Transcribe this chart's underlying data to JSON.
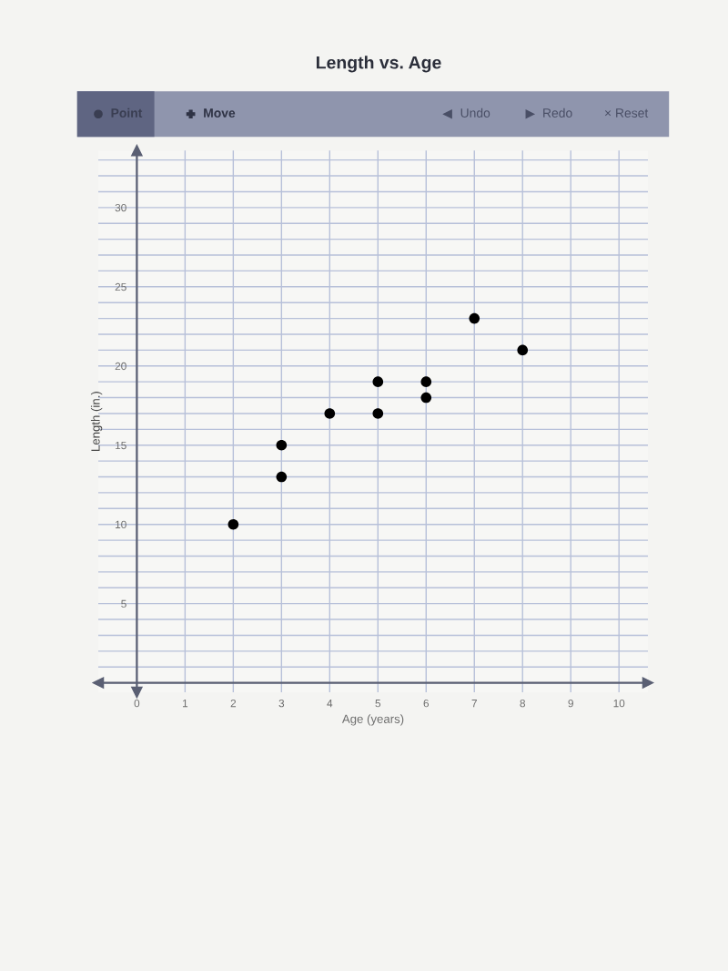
{
  "chart_data": {
    "type": "scatter",
    "title": "Length vs. Age",
    "xlabel": "Age (years)",
    "ylabel": "Length (in.)",
    "x": [
      2,
      3,
      3,
      4,
      5,
      5,
      6,
      6,
      7,
      8
    ],
    "series": [
      {
        "color": "#000000",
        "values": [
          10,
          15,
          13,
          17,
          19,
          17,
          19,
          18,
          23,
          21
        ]
      }
    ],
    "marker": "circle",
    "xlim": [
      -0.8,
      10.6
    ],
    "xticks": [
      0,
      1,
      2,
      3,
      4,
      5,
      6,
      7,
      8,
      9,
      10
    ],
    "ylim": [
      -0.6,
      33.6
    ],
    "yticks": [
      {
        "value": 0,
        "label": null
      },
      {
        "value": 1,
        "label": null
      },
      {
        "value": 2,
        "label": null
      },
      {
        "value": 3,
        "label": null
      },
      {
        "value": 4,
        "label": null
      },
      5,
      {
        "value": 6,
        "label": null
      },
      {
        "value": 7,
        "label": null
      },
      {
        "value": 8,
        "label": null
      },
      {
        "value": 9,
        "label": null
      },
      10,
      {
        "value": 11,
        "label": null
      },
      {
        "value": 12,
        "label": null
      },
      {
        "value": 13,
        "label": null
      },
      {
        "value": 14,
        "label": null
      },
      15,
      {
        "value": 16,
        "label": null
      },
      {
        "value": 17,
        "label": null
      },
      {
        "value": 18,
        "label": null
      },
      {
        "value": 19,
        "label": null
      },
      20,
      {
        "value": 21,
        "label": null
      },
      {
        "value": 22,
        "label": null
      },
      {
        "value": 23,
        "label": null
      },
      {
        "value": 24,
        "label": null
      },
      25,
      {
        "value": 26,
        "label": null
      },
      {
        "value": 27,
        "label": null
      },
      {
        "value": 28,
        "label": null
      },
      {
        "value": 29,
        "label": null
      },
      30,
      {
        "value": 31,
        "label": null
      },
      {
        "value": 32,
        "label": null
      },
      {
        "value": 33,
        "label": null
      }
    ],
    "grid": true,
    "annotations": [
      "Point",
      "Move",
      "Undo",
      "Redo",
      "× Reset"
    ]
  }
}
